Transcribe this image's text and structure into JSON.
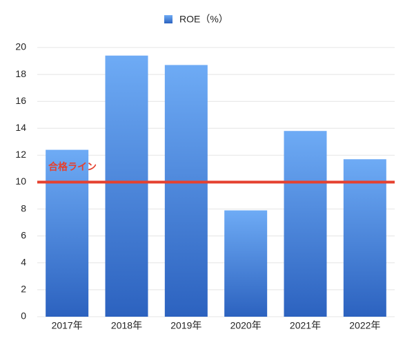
{
  "chart_data": {
    "type": "bar",
    "categories": [
      "2017年",
      "2018年",
      "2019年",
      "2020年",
      "2021年",
      "2022年"
    ],
    "series": [
      {
        "name": "ROE（%）",
        "color": "#2c62bf",
        "values": [
          12.4,
          19.4,
          18.7,
          7.9,
          13.8,
          11.7
        ]
      }
    ],
    "ylim": [
      0,
      20
    ],
    "yticks": [
      0,
      2,
      4,
      6,
      8,
      10,
      12,
      14,
      16,
      18,
      20
    ],
    "grid": true,
    "legend": "top",
    "reference_line": {
      "value": 10,
      "label": "合格ライン",
      "color": "#e5412f"
    }
  }
}
